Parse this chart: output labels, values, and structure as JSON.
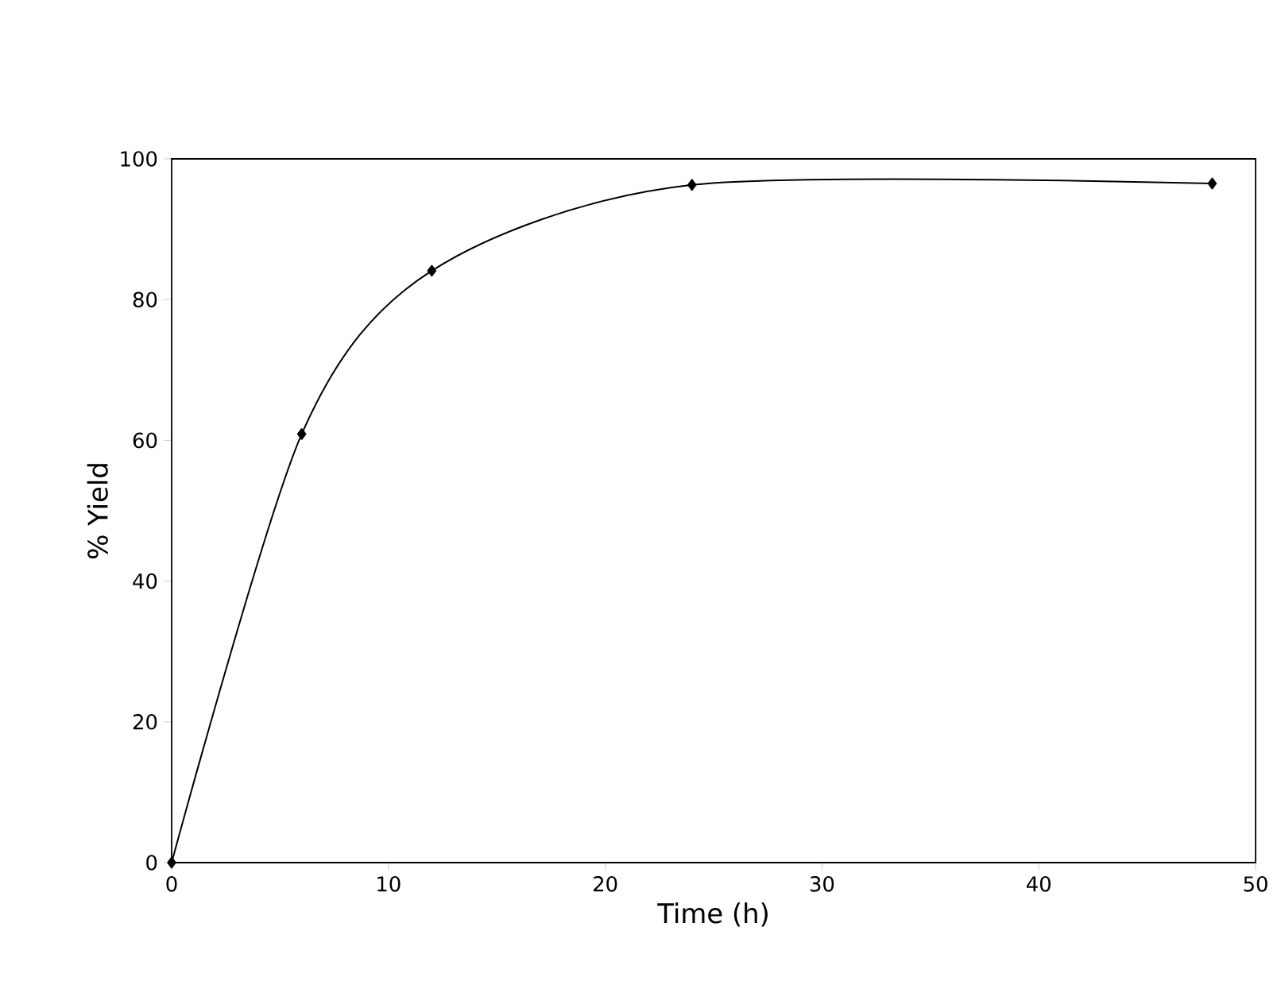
{
  "chart_data": {
    "type": "line",
    "xlabel": "Time (h)",
    "ylabel": "% Yield",
    "x": [
      0,
      6,
      12,
      24,
      48
    ],
    "series": [
      {
        "color": "#000000",
        "values": [
          0,
          60.9,
          84.1,
          96.3,
          96.5
        ]
      }
    ],
    "xlim": [
      0,
      50
    ],
    "ylim": [
      0,
      100
    ],
    "xticks": [
      0,
      10,
      20,
      30,
      40,
      50
    ],
    "yticks": [
      0,
      20,
      40,
      60,
      80,
      100
    ],
    "grid": false,
    "marker": "diamond",
    "line_style": "solid"
  }
}
